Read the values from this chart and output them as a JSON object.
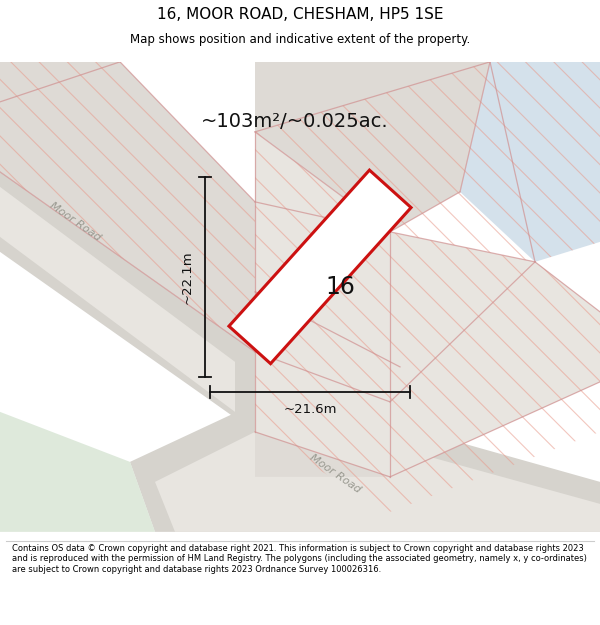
{
  "title": "16, MOOR ROAD, CHESHAM, HP5 1SE",
  "subtitle": "Map shows position and indicative extent of the property.",
  "footer": "Contains OS data © Crown copyright and database right 2021. This information is subject to Crown copyright and database rights 2023 and is reproduced with the permission of HM Land Registry. The polygons (including the associated geometry, namely x, y co-ordinates) are subject to Crown copyright and database rights 2023 Ordnance Survey 100026316.",
  "area_label": "~103m²/~0.025ac.",
  "width_label": "~21.6m",
  "height_label": "~22.1m",
  "plot_number": "16",
  "bg_white": "#ffffff",
  "map_bg": "#f0efec",
  "road_gray": "#d6d3cd",
  "road_light": "#e8e5e0",
  "hatch_color": "#e8998a",
  "plot_fill": "#ffffff",
  "plot_outline_color": "#cc1111",
  "road_label_color": "#999990",
  "dim_line_color": "#111111",
  "blue_color": "#cddce8",
  "green_color": "#d0e0cc",
  "separator_color": "#cccccc"
}
